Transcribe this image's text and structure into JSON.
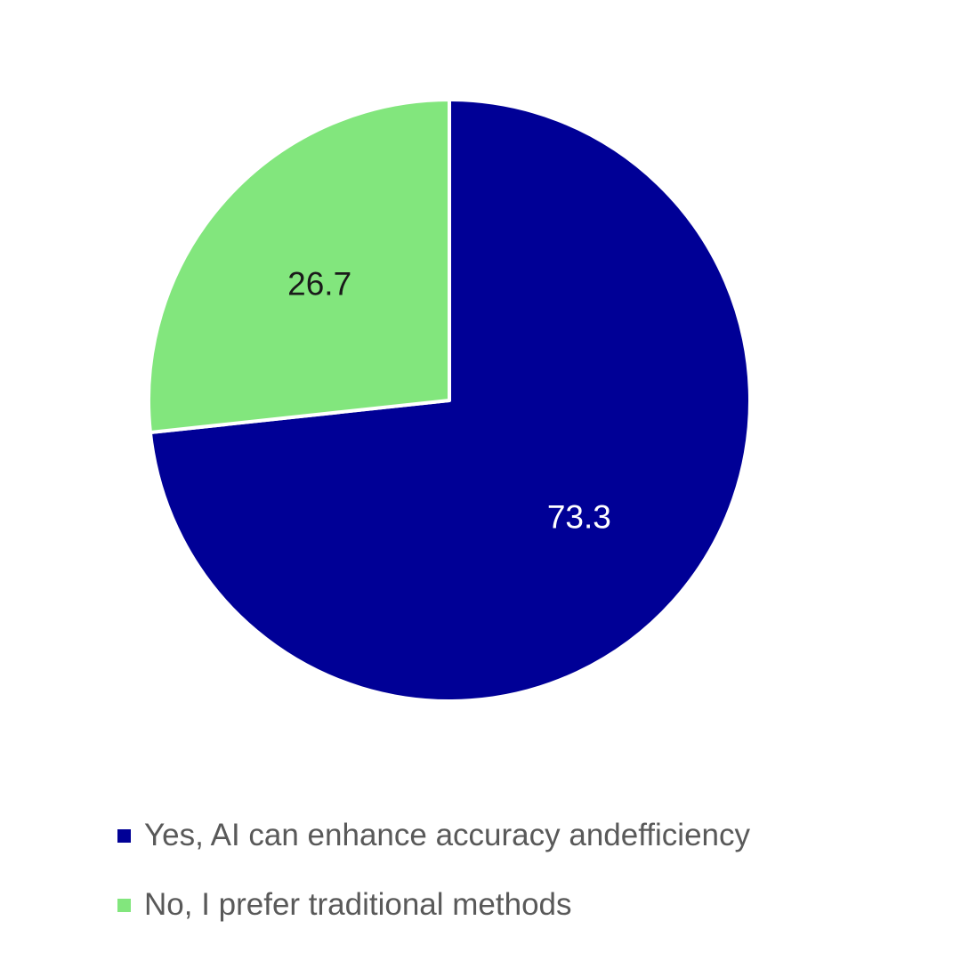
{
  "chart_data": {
    "type": "pie",
    "title": "",
    "slices": [
      {
        "label": "Yes, AI can enhance accuracy andefficiency",
        "value": 73.3,
        "color": "#000096",
        "label_color": "#ffffff"
      },
      {
        "label": "No, I prefer traditional methods",
        "value": 26.7,
        "color": "#82e67d",
        "label_color": "#1a1a1a"
      }
    ],
    "legend_position": "bottom-left"
  }
}
